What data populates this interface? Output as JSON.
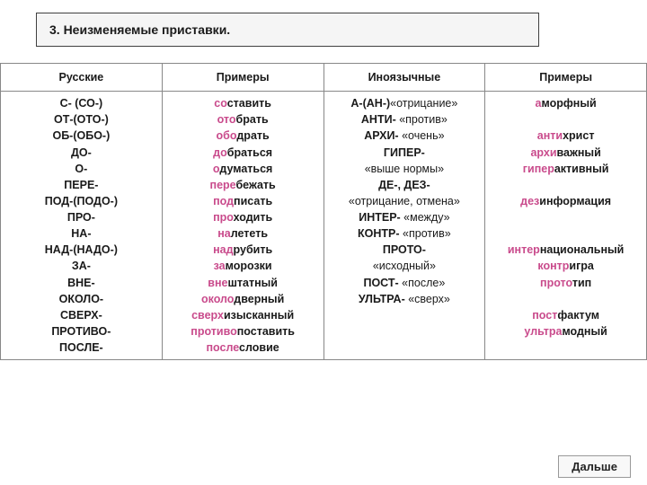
{
  "title": "3. Неизменяемые приставки.",
  "headers": [
    "Русские",
    "Примеры",
    "Иноязычные",
    "Примеры"
  ],
  "col1": [
    "С- (СО-)",
    "ОТ-(ОТО-)",
    "ОБ-(ОБО-)",
    "ДО-",
    "О-",
    "ПЕРЕ-",
    "ПОД-(ПОДО-)",
    "ПРО-",
    "НА-",
    "НАД-(НАДО-)",
    "ЗА-",
    "ВНЕ-",
    "ОКОЛО-",
    "СВЕРХ-",
    "ПРОТИВО-",
    "ПОСЛЕ-"
  ],
  "col2": [
    {
      "p": "со",
      "r": "ставить"
    },
    {
      "p": "ото",
      "r": "брать"
    },
    {
      "p": "обо",
      "r": "драть"
    },
    {
      "p": "до",
      "r": "браться"
    },
    {
      "p": "о",
      "r": "думаться"
    },
    {
      "p": "пере",
      "r": "бежать"
    },
    {
      "p": "под",
      "r": "писать"
    },
    {
      "p": "про",
      "r": "ходить"
    },
    {
      "p": "на",
      "r": "лететь"
    },
    {
      "p": "над",
      "r": "рубить"
    },
    {
      "p": "за",
      "r": "морозки"
    },
    {
      "p": "вне",
      "r": "штатный"
    },
    {
      "p": "около",
      "r": "дверный"
    },
    {
      "p": "сверх",
      "r": "изысканный"
    },
    {
      "p": "противо",
      "r": "поставить"
    },
    {
      "p": "после",
      "r": "словие"
    }
  ],
  "col3": [
    {
      "b": "А-(АН-)",
      "d": "«отрицание»"
    },
    {
      "b": "АНТИ-",
      "d": " «против»"
    },
    {
      "b": "АРХИ-",
      "d": " «очень»"
    },
    {
      "b": "ГИПЕР-",
      "d": ""
    },
    {
      "b": "",
      "d": "«выше нормы»"
    },
    {
      "b": "ДЕ-, ДЕЗ-",
      "d": ""
    },
    {
      "b": "",
      "d": "«отрицание, отмена»"
    },
    {
      "b": "ИНТЕР-",
      "d": " «между»"
    },
    {
      "b": "КОНТР-",
      "d": " «против»"
    },
    {
      "b": "ПРОТО-",
      "d": ""
    },
    {
      "b": "",
      "d": "«исходный»"
    },
    {
      "b": "ПОСТ-",
      "d": " «после»"
    },
    {
      "b": "УЛЬТРА-",
      "d": " «сверх»"
    }
  ],
  "col4": [
    {
      "p": "а",
      "r": "морфный"
    },
    {
      "p": "",
      "r": ""
    },
    {
      "p": "анти",
      "r": "христ"
    },
    {
      "p": "архи",
      "r": "важный"
    },
    {
      "p": "гипер",
      "r": "активный"
    },
    {
      "p": "",
      "r": ""
    },
    {
      "p": "дез",
      "r": "информация"
    },
    {
      "p": "",
      "r": ""
    },
    {
      "p": "",
      "r": ""
    },
    {
      "p": "интер",
      "r": "национальный"
    },
    {
      "p": "контр",
      "r": "игра"
    },
    {
      "p": "прото",
      "r": "тип"
    },
    {
      "p": "",
      "r": ""
    },
    {
      "p": "пост",
      "r": "фактум"
    },
    {
      "p": "ультра",
      "r": "модный"
    }
  ],
  "next_label": "Дальше",
  "colors": {
    "prefix": "#c94b8c",
    "text": "#1a1a1a",
    "border": "#888888",
    "title_bg": "#f5f5f5"
  }
}
